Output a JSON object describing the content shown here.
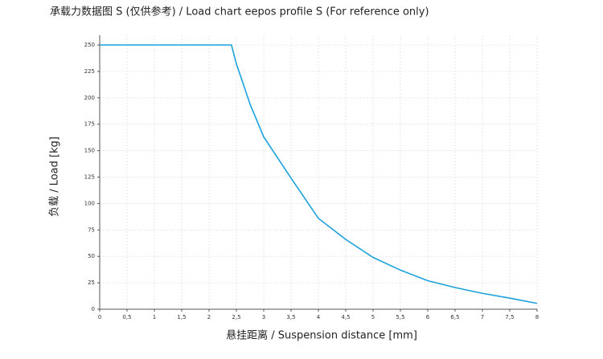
{
  "chart_data": {
    "type": "line",
    "title": "承载力数据图 S (仅供参考) / Load chart eepos profile S (For reference only)",
    "x_label": "悬挂距离 / Suspension distance [mm]",
    "y_label": "负载 / Load [kg]",
    "x": [
      0,
      2.41,
      2.5,
      2.6,
      2.75,
      3,
      3.5,
      4,
      4.5,
      5,
      5.5,
      6,
      6.5,
      7,
      7.5,
      8
    ],
    "series": [
      {
        "name": "Load",
        "color": "#1ba1dc",
        "values": [
          250,
          250,
          232,
          217,
          194,
          163,
          124,
          86,
          66,
          49,
          37,
          27,
          20.5,
          15,
          10.5,
          5.5
        ]
      }
    ],
    "xlim": [
      0,
      8
    ],
    "xticks": [
      0,
      {
        "value": 0.5,
        "label": "0,5"
      },
      1,
      {
        "value": 1.5,
        "label": "1,5"
      },
      2,
      {
        "value": 2.5,
        "label": "2,5"
      },
      3,
      {
        "value": 3.5,
        "label": "3,5"
      },
      4,
      {
        "value": 4.5,
        "label": "4,5"
      },
      5,
      {
        "value": 5.5,
        "label": "5,5"
      },
      6,
      {
        "value": 6.5,
        "label": "6,5"
      },
      7,
      {
        "value": 7.5,
        "label": "7,5"
      },
      8
    ],
    "ylim": [
      0,
      250
    ],
    "yticks": [
      0,
      25,
      50,
      75,
      100,
      125,
      150,
      175,
      200,
      225,
      250
    ],
    "grid": true
  }
}
